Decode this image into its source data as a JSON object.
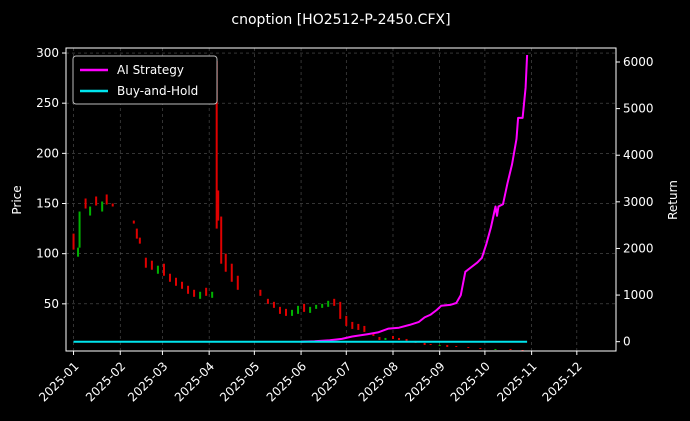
{
  "chart_data": {
    "type": "line",
    "title": "cnoption [HO2512-P-2450.CFX]",
    "xlabel": "",
    "ylabel": "Price",
    "y2label": "Return",
    "ylim": [
      3,
      305
    ],
    "y2lim": [
      -200,
      6300
    ],
    "xlim": [
      "2024-12-27",
      "2025-12-27"
    ],
    "grid": true,
    "legend_position": "top-left",
    "x_ticks": [
      "2025-01",
      "2025-02",
      "2025-03",
      "2025-04",
      "2025-05",
      "2025-06",
      "2025-07",
      "2025-08",
      "2025-09",
      "2025-10",
      "2025-11",
      "2025-12"
    ],
    "y_ticks": [
      50,
      100,
      150,
      200,
      250,
      300
    ],
    "y2_ticks": [
      0,
      1000,
      2000,
      3000,
      4000,
      5000,
      6000
    ],
    "colors": {
      "up": "#00b300",
      "down": "#e00000",
      "ai": "#ff00ff",
      "bh": "#00e5ee"
    },
    "series": [
      {
        "name": "AI Strategy",
        "axis": "right",
        "color": "#ff00ff",
        "points": [
          [
            "2025-06-01",
            0
          ],
          [
            "2025-06-10",
            10
          ],
          [
            "2025-06-20",
            30
          ],
          [
            "2025-06-28",
            60
          ],
          [
            "2025-07-05",
            110
          ],
          [
            "2025-07-15",
            160
          ],
          [
            "2025-07-22",
            200
          ],
          [
            "2025-07-29",
            280
          ],
          [
            "2025-08-05",
            300
          ],
          [
            "2025-08-12",
            360
          ],
          [
            "2025-08-18",
            420
          ],
          [
            "2025-08-22",
            520
          ],
          [
            "2025-08-26",
            580
          ],
          [
            "2025-08-30",
            680
          ],
          [
            "2025-09-02",
            770
          ],
          [
            "2025-09-08",
            790
          ],
          [
            "2025-09-12",
            830
          ],
          [
            "2025-09-15",
            1000
          ],
          [
            "2025-09-18",
            1500
          ],
          [
            "2025-09-22",
            1600
          ],
          [
            "2025-09-26",
            1700
          ],
          [
            "2025-09-29",
            1800
          ],
          [
            "2025-10-02",
            2100
          ],
          [
            "2025-10-05",
            2450
          ],
          [
            "2025-10-08",
            2900
          ],
          [
            "2025-10-09",
            2700
          ],
          [
            "2025-10-10",
            2900
          ],
          [
            "2025-10-13",
            2950
          ],
          [
            "2025-10-16",
            3400
          ],
          [
            "2025-10-19",
            3800
          ],
          [
            "2025-10-22",
            4350
          ],
          [
            "2025-10-23",
            4800
          ],
          [
            "2025-10-26",
            4800
          ],
          [
            "2025-10-28",
            5450
          ],
          [
            "2025-10-29",
            6150
          ]
        ]
      },
      {
        "name": "Buy-and-Hold",
        "axis": "right",
        "color": "#00e5ee",
        "points": [
          [
            "2025-01-01",
            0
          ],
          [
            "2025-10-29",
            0
          ]
        ]
      }
    ],
    "candles": [
      [
        "2025-01-01",
        120,
        104
      ],
      [
        "2025-01-04",
        106,
        97
      ],
      [
        "2025-01-05",
        142,
        106
      ],
      [
        "2025-01-09",
        155,
        145
      ],
      [
        "2025-01-12",
        147,
        138
      ],
      [
        "2025-01-16",
        157,
        148
      ],
      [
        "2025-01-20",
        152,
        142
      ],
      [
        "2025-01-23",
        159,
        149
      ],
      [
        "2025-01-27",
        150,
        147
      ],
      [
        "2025-02-10",
        133,
        130
      ],
      [
        "2025-02-12",
        125,
        115
      ],
      [
        "2025-02-14",
        116,
        110
      ],
      [
        "2025-02-18",
        96,
        86
      ],
      [
        "2025-02-22",
        93,
        84
      ],
      [
        "2025-02-26",
        88,
        80
      ],
      [
        "2025-03-02",
        90,
        78
      ],
      [
        "2025-03-06",
        80,
        72
      ],
      [
        "2025-03-10",
        76,
        68
      ],
      [
        "2025-03-14",
        72,
        65
      ],
      [
        "2025-03-18",
        68,
        60
      ],
      [
        "2025-03-22",
        64,
        57
      ],
      [
        "2025-03-26",
        62,
        55
      ],
      [
        "2025-03-30",
        66,
        58
      ],
      [
        "2025-04-03",
        62,
        56
      ],
      [
        "2025-04-06",
        292,
        125
      ],
      [
        "2025-04-07",
        163,
        133
      ],
      [
        "2025-04-09",
        137,
        90
      ],
      [
        "2025-04-12",
        100,
        82
      ],
      [
        "2025-04-16",
        90,
        72
      ],
      [
        "2025-04-20",
        78,
        64
      ],
      [
        "2025-05-05",
        64,
        58
      ],
      [
        "2025-05-10",
        55,
        50
      ],
      [
        "2025-05-14",
        52,
        46
      ],
      [
        "2025-05-18",
        47,
        40
      ],
      [
        "2025-05-22",
        45,
        38
      ],
      [
        "2025-05-26",
        44,
        38
      ],
      [
        "2025-05-30",
        48,
        40
      ],
      [
        "2025-06-03",
        50,
        42
      ],
      [
        "2025-06-07",
        47,
        41
      ],
      [
        "2025-06-11",
        49,
        45
      ],
      [
        "2025-06-15",
        50,
        46
      ],
      [
        "2025-06-19",
        53,
        47
      ],
      [
        "2025-06-23",
        55,
        48
      ],
      [
        "2025-06-27",
        52,
        35
      ],
      [
        "2025-07-01",
        38,
        28
      ],
      [
        "2025-07-05",
        32,
        25
      ],
      [
        "2025-07-09",
        30,
        24
      ],
      [
        "2025-07-13",
        28,
        22
      ],
      [
        "2025-07-19",
        20,
        18
      ],
      [
        "2025-07-23",
        17,
        14
      ],
      [
        "2025-07-27",
        16,
        14
      ],
      [
        "2025-08-01",
        18,
        15
      ],
      [
        "2025-08-05",
        16,
        14
      ],
      [
        "2025-08-10",
        15,
        13
      ],
      [
        "2025-08-16",
        13,
        11
      ],
      [
        "2025-08-22",
        11,
        9
      ],
      [
        "2025-08-26",
        10,
        9
      ],
      [
        "2025-09-01",
        9,
        8
      ],
      [
        "2025-09-06",
        9,
        7
      ],
      [
        "2025-09-12",
        8,
        7
      ],
      [
        "2025-09-20",
        7,
        6
      ],
      [
        "2025-09-28",
        6,
        5
      ],
      [
        "2025-10-08",
        5,
        4
      ],
      [
        "2025-10-18",
        5,
        4
      ],
      [
        "2025-10-26",
        4,
        3
      ]
    ]
  }
}
